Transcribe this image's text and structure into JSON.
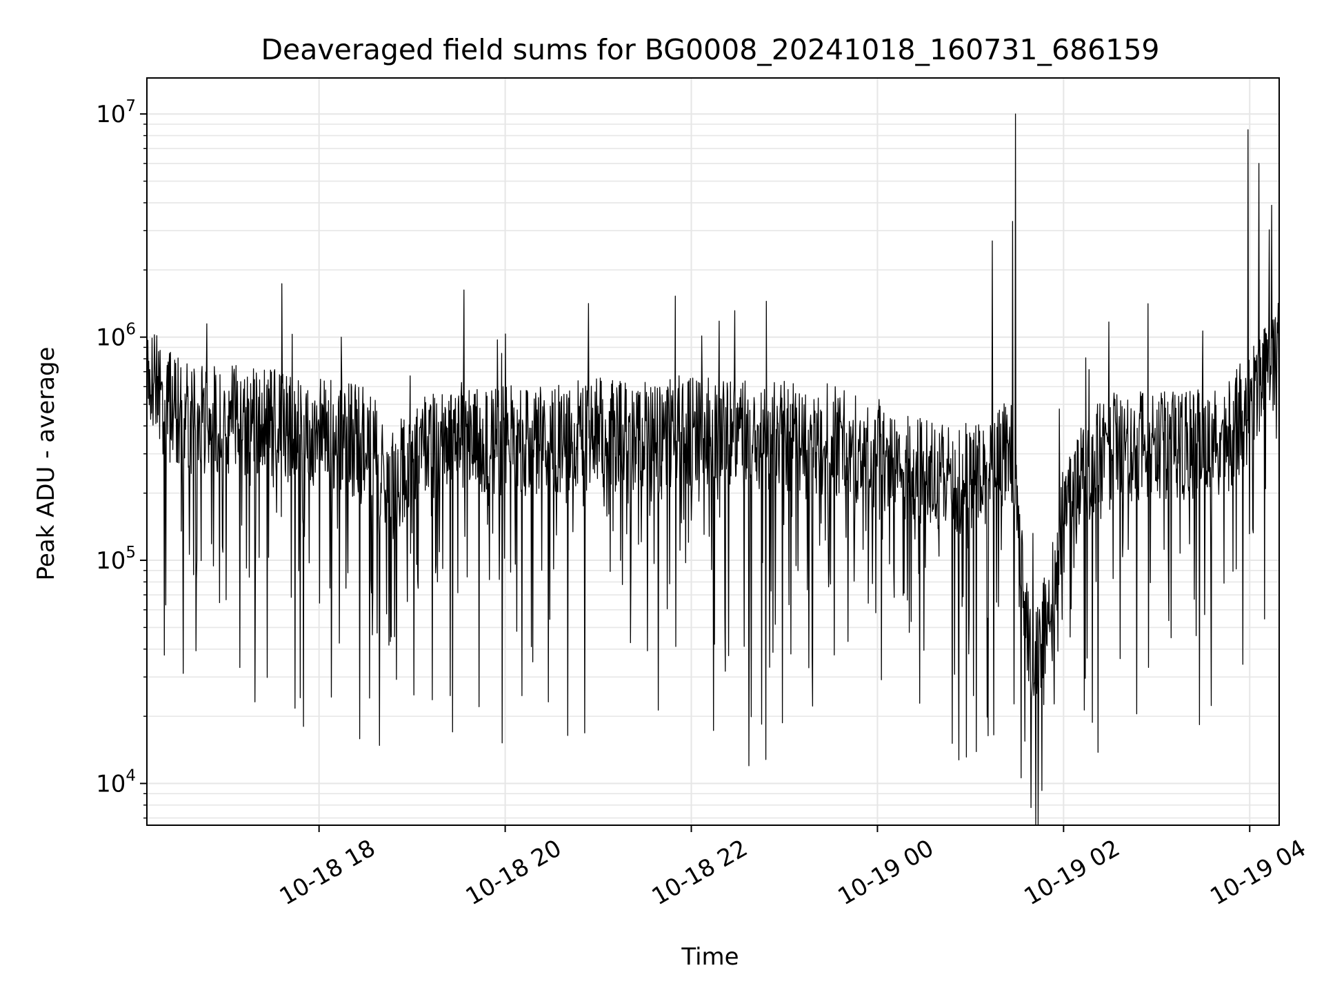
{
  "chart_data": {
    "type": "line",
    "title": "Deaveraged field sums for BG0008_20241018_160731_686159",
    "xlabel": "Time",
    "ylabel": "Peak ADU - average",
    "yscale": "log",
    "grid": true,
    "legend": "none",
    "colors": {
      "line": "#000000",
      "grid": "#e6e6e6",
      "axes": "#000000"
    },
    "x_range": [
      "2024-10-18 16:09",
      "2024-10-19 04:19"
    ],
    "ylim": [
      6500,
      14500000
    ],
    "x_ticks": [
      {
        "t": "2024-10-18 18:00",
        "label": "10-18 18"
      },
      {
        "t": "2024-10-18 20:00",
        "label": "10-18 20"
      },
      {
        "t": "2024-10-18 22:00",
        "label": "10-18 22"
      },
      {
        "t": "2024-10-19 00:00",
        "label": "10-19 00"
      },
      {
        "t": "2024-10-19 02:00",
        "label": "10-19 02"
      },
      {
        "t": "2024-10-19 04:00",
        "label": "10-19 04"
      }
    ],
    "y_ticks": [
      {
        "value": 10000,
        "base": "10",
        "exp": "4"
      },
      {
        "value": 100000,
        "base": "10",
        "exp": "5"
      },
      {
        "value": 1000000,
        "base": "10",
        "exp": "6"
      },
      {
        "value": 10000000,
        "base": "10",
        "exp": "7"
      }
    ],
    "series": [
      {
        "x": [
          "2024-10-18 16:09",
          "2024-10-18 16:20",
          "2024-10-18 16:40",
          "2024-10-18 17:00",
          "2024-10-18 17:20",
          "2024-10-18 17:40",
          "2024-10-18 18:00",
          "2024-10-18 18:20",
          "2024-10-18 18:35",
          "2024-10-18 18:45",
          "2024-10-18 19:00",
          "2024-10-18 19:30",
          "2024-10-18 20:00",
          "2024-10-18 20:30",
          "2024-10-18 21:00",
          "2024-10-18 21:30",
          "2024-10-18 22:00",
          "2024-10-18 22:30",
          "2024-10-18 23:00",
          "2024-10-18 23:30",
          "2024-10-19 00:00",
          "2024-10-19 00:30",
          "2024-10-19 01:00",
          "2024-10-19 01:15",
          "2024-10-19 01:25",
          "2024-10-19 01:30",
          "2024-10-19 01:35",
          "2024-10-19 01:40",
          "2024-10-19 01:45",
          "2024-10-19 01:50",
          "2024-10-19 02:00",
          "2024-10-19 02:15",
          "2024-10-19 02:30",
          "2024-10-19 03:00",
          "2024-10-19 03:30",
          "2024-10-19 03:45",
          "2024-10-19 04:00",
          "2024-10-19 04:10",
          "2024-10-19 04:19"
        ],
        "y": [
          750000,
          500000,
          420000,
          430000,
          420000,
          400000,
          380000,
          350000,
          330000,
          200000,
          300000,
          380000,
          340000,
          350000,
          370000,
          380000,
          380000,
          370000,
          360000,
          350000,
          300000,
          250000,
          230000,
          250000,
          320000,
          200000,
          60000,
          35000,
          40000,
          60000,
          150000,
          250000,
          330000,
          320000,
          330000,
          350000,
          500000,
          700000,
          900000
        ],
        "peaks": [
          {
            "x": "2024-10-19 01:29",
            "y": 10000000
          },
          {
            "x": "2024-10-19 03:59",
            "y": 8500000
          },
          {
            "x": "2024-10-19 04:06",
            "y": 6000000
          },
          {
            "x": "2024-10-19 01:27",
            "y": 3300000
          },
          {
            "x": "2024-10-19 01:14",
            "y": 2700000
          },
          {
            "x": "2024-10-19 04:14",
            "y": 3900000
          }
        ],
        "dips": [
          {
            "x": "2024-10-19 01:46",
            "y": 9300
          },
          {
            "x": "2024-10-18 22:37",
            "y": 12000
          },
          {
            "x": "2024-10-18 22:48",
            "y": 12800
          },
          {
            "x": "2024-10-18 18:39",
            "y": 14800
          },
          {
            "x": "2024-10-18 19:58",
            "y": 15200
          },
          {
            "x": "2024-10-18 17:50",
            "y": 18000
          }
        ]
      }
    ]
  }
}
